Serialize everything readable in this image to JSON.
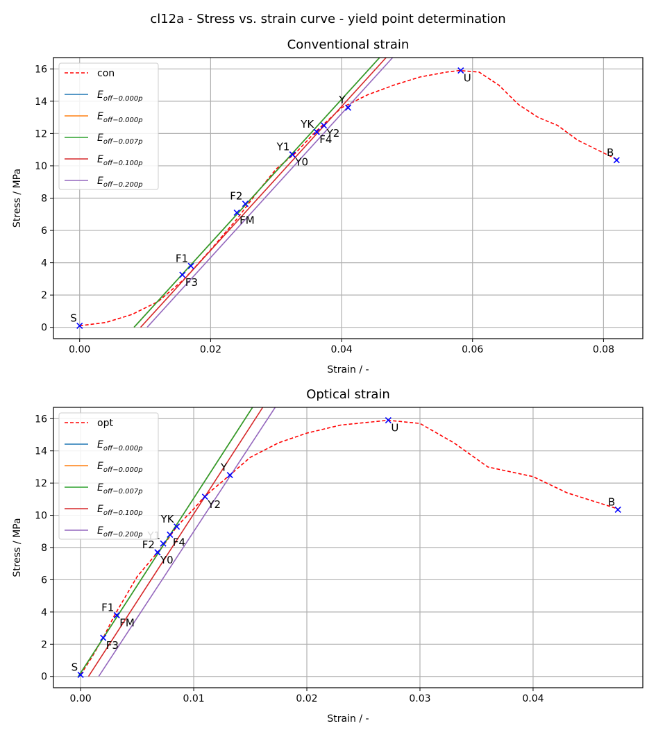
{
  "figure_title": "cl12a - Stress vs. strain curve - yield point determination",
  "colors": {
    "measured": "#ff0000",
    "points": "#0000ff",
    "grid": "#b0b0b0",
    "E_0": "#1f77b4",
    "E_0b": "#ff7f0e",
    "E_007": "#2ca02c",
    "E_100": "#d62728",
    "E_200": "#9467bd"
  },
  "chart_data": [
    {
      "type": "line",
      "title": "Conventional strain",
      "xlabel": "Strain / -",
      "ylabel": "Stress / MPa",
      "xlim": [
        -0.004,
        0.086
      ],
      "ylim": [
        -0.7,
        16.7
      ],
      "xticks": [
        0.0,
        0.02,
        0.04,
        0.06,
        0.08
      ],
      "xtick_labels": [
        "0.00",
        "0.02",
        "0.04",
        "0.06",
        "0.08"
      ],
      "yticks": [
        0,
        2,
        4,
        6,
        8,
        10,
        12,
        14,
        16
      ],
      "grid": true,
      "legend_position": "upper left",
      "series": [
        {
          "name": "con",
          "style": "dashed",
          "points": [
            [
              0.0,
              0.1
            ],
            [
              0.004,
              0.3
            ],
            [
              0.008,
              0.8
            ],
            [
              0.012,
              1.6
            ],
            [
              0.016,
              3.0
            ],
            [
              0.02,
              4.8
            ],
            [
              0.024,
              6.7
            ],
            [
              0.027,
              8.3
            ],
            [
              0.03,
              9.8
            ],
            [
              0.033,
              10.8
            ],
            [
              0.036,
              12.1
            ],
            [
              0.04,
              13.6
            ],
            [
              0.044,
              14.4
            ],
            [
              0.048,
              15.0
            ],
            [
              0.052,
              15.5
            ],
            [
              0.056,
              15.8
            ],
            [
              0.058,
              15.9
            ],
            [
              0.061,
              15.8
            ],
            [
              0.064,
              15.0
            ],
            [
              0.067,
              13.8
            ],
            [
              0.07,
              13.0
            ],
            [
              0.073,
              12.5
            ],
            [
              0.076,
              11.6
            ],
            [
              0.079,
              11.0
            ],
            [
              0.082,
              10.4
            ]
          ]
        },
        {
          "name": "E_off-0.000p",
          "sub": "off−0.000p",
          "points": [
            [
              0.0083,
              0.0
            ],
            [
              0.0458,
              16.7
            ]
          ]
        },
        {
          "name": "E_off-0.000p",
          "sub": "off−0.000p",
          "points": [
            [
              0.0083,
              0.0
            ],
            [
              0.0458,
              16.7
            ]
          ]
        },
        {
          "name": "E_off-0.007p",
          "sub": "off−0.007p",
          "points": [
            [
              0.0083,
              0.0
            ],
            [
              0.0458,
              16.7
            ]
          ]
        },
        {
          "name": "E_off-0.100p",
          "sub": "off−0.100p",
          "points": [
            [
              0.0093,
              0.0
            ],
            [
              0.0468,
              16.7
            ]
          ]
        },
        {
          "name": "E_off-0.200p",
          "sub": "off−0.200p",
          "points": [
            [
              0.0103,
              0.0
            ],
            [
              0.0478,
              16.7
            ]
          ]
        }
      ],
      "markers": [
        {
          "label": "S",
          "x": 0.0,
          "y": 0.1,
          "pos": "ul"
        },
        {
          "label": "F1",
          "x": 0.017,
          "y": 3.8,
          "pos": "ul"
        },
        {
          "label": "F3",
          "x": 0.0157,
          "y": 3.25,
          "pos": "br"
        },
        {
          "label": "F2",
          "x": 0.0253,
          "y": 7.65,
          "pos": "ul"
        },
        {
          "label": "FM",
          "x": 0.024,
          "y": 7.1,
          "pos": "br"
        },
        {
          "label": "Y1",
          "x": 0.0325,
          "y": 10.7,
          "pos": "ul"
        },
        {
          "label": "Y0",
          "x": 0.0325,
          "y": 10.7,
          "pos": "br"
        },
        {
          "label": "YK",
          "x": 0.0362,
          "y": 12.1,
          "pos": "ul"
        },
        {
          "label": "F4",
          "x": 0.0362,
          "y": 12.1,
          "pos": "br"
        },
        {
          "label": "Y2",
          "x": 0.0373,
          "y": 12.5,
          "pos": "br"
        },
        {
          "label": "Y",
          "x": 0.041,
          "y": 13.6,
          "pos": "ul"
        },
        {
          "label": "U",
          "x": 0.0582,
          "y": 15.9,
          "pos": "br"
        },
        {
          "label": "B",
          "x": 0.082,
          "y": 10.35,
          "pos": "ul"
        }
      ]
    },
    {
      "type": "line",
      "title": "Optical strain",
      "xlabel": "Strain / -",
      "ylabel": "Stress / MPa",
      "xlim": [
        -0.0024,
        0.0497
      ],
      "ylim": [
        -0.7,
        16.7
      ],
      "xticks": [
        0.0,
        0.01,
        0.02,
        0.03,
        0.04
      ],
      "xtick_labels": [
        "0.00",
        "0.01",
        "0.02",
        "0.03",
        "0.04"
      ],
      "yticks": [
        0,
        2,
        4,
        6,
        8,
        10,
        12,
        14,
        16
      ],
      "grid": true,
      "legend_position": "upper left",
      "series": [
        {
          "name": "opt",
          "style": "dashed",
          "points": [
            [
              0.0,
              0.1
            ],
            [
              0.001,
              1.2
            ],
            [
              0.002,
              2.4
            ],
            [
              0.003,
              3.8
            ],
            [
              0.004,
              5.0
            ],
            [
              0.005,
              6.2
            ],
            [
              0.0068,
              7.7
            ],
            [
              0.0075,
              8.3
            ],
            [
              0.0085,
              9.3
            ],
            [
              0.01,
              10.4
            ],
            [
              0.011,
              11.2
            ],
            [
              0.0132,
              12.5
            ],
            [
              0.015,
              13.6
            ],
            [
              0.0175,
              14.5
            ],
            [
              0.02,
              15.1
            ],
            [
              0.023,
              15.6
            ],
            [
              0.0272,
              15.9
            ],
            [
              0.03,
              15.7
            ],
            [
              0.033,
              14.5
            ],
            [
              0.036,
              13.0
            ],
            [
              0.04,
              12.4
            ],
            [
              0.043,
              11.4
            ],
            [
              0.0475,
              10.4
            ]
          ]
        },
        {
          "name": "E_off-0.000p",
          "sub": "off−0.000p",
          "points": [
            [
              -0.0002,
              0.0
            ],
            [
              0.0152,
              16.7
            ]
          ]
        },
        {
          "name": "E_off-0.000p",
          "sub": "off−0.000p",
          "points": [
            [
              -0.0002,
              0.0
            ],
            [
              0.0152,
              16.7
            ]
          ]
        },
        {
          "name": "E_off-0.007p",
          "sub": "off−0.007p",
          "points": [
            [
              -0.0002,
              0.0
            ],
            [
              0.0152,
              16.7
            ]
          ]
        },
        {
          "name": "E_off-0.100p",
          "sub": "off−0.100p",
          "points": [
            [
              0.0007,
              0.0
            ],
            [
              0.0161,
              16.7
            ]
          ]
        },
        {
          "name": "E_off-0.200p",
          "sub": "off−0.200p",
          "points": [
            [
              0.0016,
              0.0
            ],
            [
              0.0172,
              16.7
            ]
          ]
        }
      ],
      "markers": [
        {
          "label": "S",
          "x": 0.0,
          "y": 0.1,
          "pos": "ul"
        },
        {
          "label": "F1",
          "x": 0.0032,
          "y": 3.8,
          "pos": "ul"
        },
        {
          "label": "FM",
          "x": 0.0032,
          "y": 3.8,
          "pos": "br"
        },
        {
          "label": "F3",
          "x": 0.002,
          "y": 2.4,
          "pos": "br"
        },
        {
          "label": "F2",
          "x": 0.0068,
          "y": 7.7,
          "pos": "ul"
        },
        {
          "label": "Y0",
          "x": 0.0068,
          "y": 7.7,
          "pos": "br"
        },
        {
          "label": "Y1",
          "x": 0.0073,
          "y": 8.25,
          "pos": "ul"
        },
        {
          "label": "YK",
          "x": 0.0085,
          "y": 9.3,
          "pos": "ul"
        },
        {
          "label": "F4",
          "x": 0.0079,
          "y": 8.8,
          "pos": "br"
        },
        {
          "label": "Y2",
          "x": 0.011,
          "y": 11.15,
          "pos": "br"
        },
        {
          "label": "Y",
          "x": 0.0132,
          "y": 12.5,
          "pos": "ul"
        },
        {
          "label": "U",
          "x": 0.0272,
          "y": 15.9,
          "pos": "br"
        },
        {
          "label": "B",
          "x": 0.0475,
          "y": 10.35,
          "pos": "ul"
        }
      ]
    }
  ]
}
